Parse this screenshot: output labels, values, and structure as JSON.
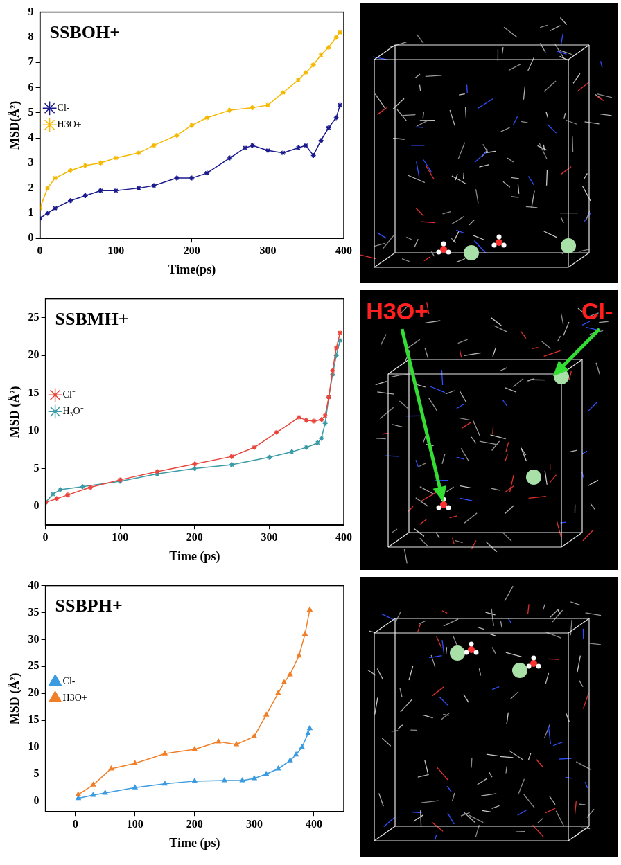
{
  "chart_data": [
    {
      "type": "line",
      "title": "SSBOH+",
      "x_label": "Time(ps)",
      "y_label": "MSD(Å²)",
      "xlim": [
        0,
        400
      ],
      "xticks": [
        0,
        100,
        200,
        300,
        400
      ],
      "ylim": [
        0,
        9
      ],
      "yticks": [
        0,
        1,
        2,
        3,
        4,
        5,
        6,
        7,
        8,
        9
      ],
      "grid": false,
      "legend": "upper center",
      "series": [
        {
          "name": "Cl-",
          "color": "#1a1a8c",
          "marker": "star",
          "x": [
            0,
            10,
            20,
            40,
            60,
            80,
            100,
            130,
            150,
            180,
            200,
            220,
            250,
            270,
            280,
            300,
            320,
            340,
            350,
            360,
            370,
            380,
            390,
            395
          ],
          "values": [
            0.8,
            1.0,
            1.2,
            1.5,
            1.7,
            1.9,
            1.9,
            2.0,
            2.1,
            2.4,
            2.4,
            2.6,
            3.2,
            3.6,
            3.7,
            3.5,
            3.4,
            3.6,
            3.7,
            3.3,
            3.9,
            4.4,
            4.8,
            5.3
          ]
        },
        {
          "name": "H3O+",
          "color": "#f5b800",
          "marker": "star",
          "x": [
            0,
            10,
            20,
            40,
            60,
            80,
            100,
            130,
            150,
            180,
            200,
            220,
            250,
            280,
            300,
            320,
            340,
            350,
            360,
            370,
            380,
            390,
            395
          ],
          "values": [
            1.2,
            2.0,
            2.4,
            2.7,
            2.9,
            3.0,
            3.2,
            3.4,
            3.7,
            4.1,
            4.5,
            4.8,
            5.1,
            5.2,
            5.3,
            5.8,
            6.3,
            6.6,
            6.9,
            7.3,
            7.6,
            8.0,
            8.2
          ]
        }
      ]
    },
    {
      "type": "line",
      "title": "SSBMH+",
      "x_label": "Time (ps)",
      "y_label": "MSD (Å²)",
      "xlim": [
        0,
        400
      ],
      "xticks": [
        0,
        100,
        200,
        300,
        400
      ],
      "ylim": [
        -2.5,
        27.5
      ],
      "yticks": [
        0,
        5,
        10,
        15,
        20,
        25
      ],
      "grid": false,
      "legend": "upper center",
      "series": [
        {
          "name": "Cl⁻",
          "color": "#e8463c",
          "marker": "star",
          "x": [
            0,
            15,
            30,
            60,
            100,
            150,
            200,
            250,
            280,
            310,
            340,
            350,
            360,
            370,
            375,
            380,
            385,
            390,
            395
          ],
          "values": [
            0.5,
            1.0,
            1.5,
            2.5,
            3.5,
            4.6,
            5.6,
            6.6,
            7.8,
            9.8,
            11.8,
            11.4,
            11.3,
            11.5,
            12.0,
            14.5,
            18.0,
            21.0,
            23.0
          ]
        },
        {
          "name": "H₃O⁺",
          "color": "#3a9aa5",
          "marker": "star",
          "x": [
            0,
            10,
            20,
            50,
            100,
            150,
            200,
            250,
            300,
            330,
            350,
            365,
            370,
            375,
            380,
            385,
            390,
            395
          ],
          "values": [
            0.5,
            1.6,
            2.2,
            2.6,
            3.3,
            4.3,
            5.0,
            5.5,
            6.5,
            7.2,
            7.8,
            8.4,
            9.0,
            11.0,
            14.5,
            17.5,
            20.0,
            22.0
          ]
        }
      ]
    },
    {
      "type": "line",
      "title": "SSBPH+",
      "x_label": "Time (ps)",
      "y_label": "MSD (Å²)",
      "xlim": [
        -50,
        450
      ],
      "xticks": [
        0,
        100,
        200,
        300,
        400
      ],
      "ylim": [
        -2,
        40
      ],
      "yticks": [
        0,
        5,
        10,
        15,
        20,
        25,
        30,
        35,
        40
      ],
      "grid": false,
      "legend": "upper center",
      "series": [
        {
          "name": "Cl-",
          "color": "#3b9be0",
          "marker": "triangle",
          "x": [
            5,
            30,
            50,
            100,
            150,
            200,
            250,
            280,
            300,
            320,
            340,
            360,
            370,
            380,
            390,
            393
          ],
          "values": [
            0.5,
            1.1,
            1.5,
            2.5,
            3.2,
            3.7,
            3.8,
            3.8,
            4.2,
            5.0,
            6.0,
            7.5,
            8.6,
            10.0,
            12.5,
            13.5
          ]
        },
        {
          "name": "H3O+",
          "color": "#f07f28",
          "marker": "triangle",
          "x": [
            5,
            30,
            60,
            100,
            150,
            200,
            240,
            270,
            300,
            320,
            340,
            350,
            360,
            375,
            385,
            393
          ],
          "values": [
            1.2,
            3.0,
            6.0,
            7.0,
            8.8,
            9.6,
            11.0,
            10.5,
            12.0,
            16.0,
            20.0,
            22.0,
            23.5,
            27.0,
            31.0,
            35.5
          ]
        }
      ]
    }
  ],
  "snapshots": [
    {
      "annotations": []
    },
    {
      "annotations": [
        {
          "text": "H3O+",
          "color": "#ff2020"
        },
        {
          "text": "Cl-",
          "color": "#ff2020"
        }
      ]
    },
    {
      "annotations": []
    }
  ]
}
